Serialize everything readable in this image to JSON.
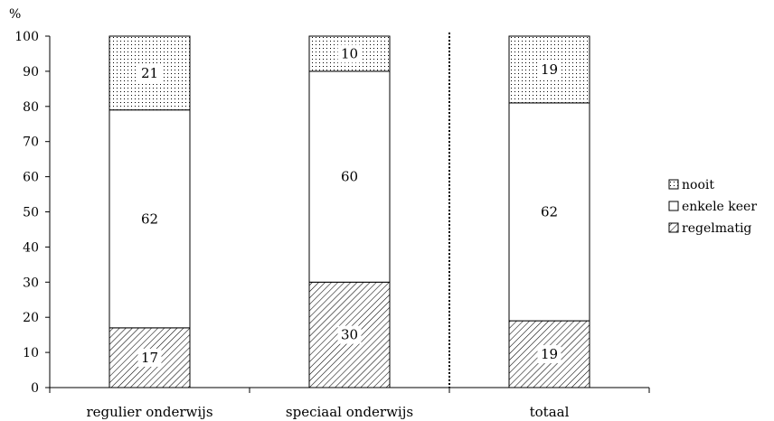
{
  "chart_data": {
    "type": "bar",
    "stacked": true,
    "orientation": "vertical",
    "y_unit": "%",
    "ylim": [
      0,
      100
    ],
    "y_ticks": [
      0,
      10,
      20,
      30,
      40,
      50,
      60,
      70,
      80,
      90,
      100
    ],
    "categories": [
      "regulier onderwijs",
      "speciaal onderwijs",
      "totaal"
    ],
    "series": [
      {
        "name": "regelmatig",
        "values": [
          17,
          30,
          19
        ],
        "pattern": "diagonal-hatch"
      },
      {
        "name": "enkele keer",
        "values": [
          62,
          60,
          62
        ],
        "pattern": "none"
      },
      {
        "name": "nooit",
        "values": [
          21,
          10,
          19
        ],
        "pattern": "dots"
      }
    ],
    "legend_order": [
      "nooit",
      "enkele keer",
      "regelmatig"
    ],
    "legend_position": "right",
    "separator": "dotted vertical line between speciaal onderwijs and totaal",
    "grid": false,
    "colors": {
      "axis": "#000000",
      "bar_fill": "#ffffff",
      "pattern": "#000000"
    }
  }
}
